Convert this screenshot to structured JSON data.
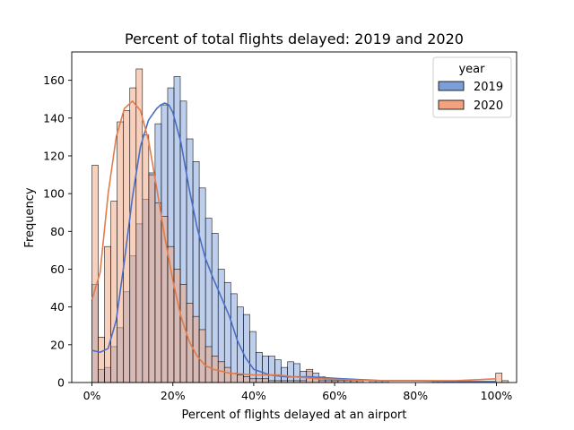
{
  "chart_data": {
    "type": "bar",
    "title": "Percent of total flights delayed: 2019 and 2020",
    "xlabel": "Percent of flights delayed at an airport",
    "ylabel": "Frequency",
    "xlim": [
      -0.05,
      1.05
    ],
    "ylim": [
      0,
      175
    ],
    "xticks": [
      {
        "value": 0.0,
        "label": "0%"
      },
      {
        "value": 0.2,
        "label": "20%"
      },
      {
        "value": 0.4,
        "label": "40%"
      },
      {
        "value": 0.6,
        "label": "60%"
      },
      {
        "value": 0.8,
        "label": "80%"
      },
      {
        "value": 1.0,
        "label": "100%"
      }
    ],
    "yticks": [
      {
        "value": 0,
        "label": "0"
      },
      {
        "value": 20,
        "label": "20"
      },
      {
        "value": 40,
        "label": "40"
      },
      {
        "value": 60,
        "label": "60"
      },
      {
        "value": 80,
        "label": "80"
      },
      {
        "value": 100,
        "label": "100"
      },
      {
        "value": 120,
        "label": "120"
      },
      {
        "value": 140,
        "label": "140"
      },
      {
        "value": 160,
        "label": "160"
      }
    ],
    "grid": false,
    "legend": {
      "title": "year",
      "placement": "top-right"
    },
    "bin_width": 0.0156,
    "series": [
      {
        "name": "2019",
        "color": "#4c72b0",
        "fill": "#7c9fd9",
        "kde_color": "#4a6fc7",
        "values": [
          52,
          7,
          8,
          19,
          29,
          48,
          67,
          84,
          97,
          111,
          137,
          147,
          156,
          162,
          149,
          129,
          117,
          103,
          87,
          79,
          60,
          53,
          47,
          40,
          36,
          27,
          16,
          14,
          14,
          12,
          8,
          11,
          10,
          6,
          6,
          5,
          3,
          2,
          1,
          1,
          1,
          1,
          1,
          0,
          1,
          1,
          1,
          0,
          0,
          0,
          0,
          0,
          0,
          0,
          1,
          0,
          0,
          0,
          0,
          0,
          0,
          0,
          0,
          0,
          0,
          0
        ],
        "kde": [
          [
            0.0,
            17
          ],
          [
            0.02,
            16
          ],
          [
            0.04,
            18
          ],
          [
            0.06,
            33
          ],
          [
            0.08,
            64
          ],
          [
            0.1,
            98
          ],
          [
            0.12,
            125
          ],
          [
            0.14,
            139
          ],
          [
            0.16,
            145
          ],
          [
            0.17,
            147
          ],
          [
            0.18,
            148
          ],
          [
            0.19,
            147
          ],
          [
            0.2,
            143
          ],
          [
            0.22,
            127
          ],
          [
            0.24,
            103
          ],
          [
            0.26,
            82
          ],
          [
            0.28,
            66
          ],
          [
            0.3,
            55
          ],
          [
            0.32,
            45
          ],
          [
            0.34,
            35
          ],
          [
            0.36,
            22
          ],
          [
            0.38,
            13
          ],
          [
            0.4,
            7
          ],
          [
            0.44,
            4
          ],
          [
            0.48,
            3
          ],
          [
            0.54,
            3
          ],
          [
            0.62,
            2
          ],
          [
            0.72,
            1
          ],
          [
            0.8,
            1
          ],
          [
            0.9,
            0.5
          ],
          [
            1.0,
            0.5
          ]
        ]
      },
      {
        "name": "2020",
        "color": "#4c72b0",
        "fill": "#f2a37e",
        "kde_color": "#e27c4a",
        "values": [
          115,
          24,
          72,
          96,
          138,
          144,
          156,
          166,
          131,
          110,
          95,
          88,
          72,
          60,
          52,
          42,
          35,
          28,
          19,
          14,
          11,
          8,
          5,
          4,
          3,
          2,
          2,
          2,
          1,
          1,
          1,
          1,
          1,
          1,
          7,
          2,
          1,
          1,
          1,
          0,
          0,
          0,
          0,
          0,
          0,
          0,
          0,
          0,
          0,
          0,
          0,
          0,
          0,
          0,
          0,
          0,
          0,
          0,
          0,
          0,
          0,
          0,
          0,
          0,
          5,
          1
        ],
        "kde": [
          [
            0.0,
            44
          ],
          [
            0.02,
            58
          ],
          [
            0.04,
            100
          ],
          [
            0.06,
            130
          ],
          [
            0.08,
            145
          ],
          [
            0.1,
            149
          ],
          [
            0.12,
            144
          ],
          [
            0.14,
            128
          ],
          [
            0.16,
            103
          ],
          [
            0.18,
            77
          ],
          [
            0.2,
            54
          ],
          [
            0.22,
            35
          ],
          [
            0.24,
            22
          ],
          [
            0.26,
            14
          ],
          [
            0.28,
            9
          ],
          [
            0.3,
            7
          ],
          [
            0.34,
            5
          ],
          [
            0.4,
            4
          ],
          [
            0.46,
            4
          ],
          [
            0.5,
            3
          ],
          [
            0.56,
            2
          ],
          [
            0.7,
            1
          ],
          [
            0.8,
            1
          ],
          [
            0.9,
            1
          ],
          [
            1.0,
            2
          ]
        ]
      }
    ]
  }
}
